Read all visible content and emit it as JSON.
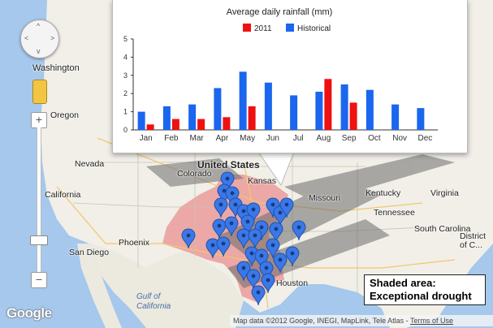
{
  "map": {
    "labels": {
      "washington": "Washington",
      "oregon": "Oregon",
      "nevada": "Nevada",
      "california": "California",
      "colorado": "Colorado",
      "united_states": "United States",
      "kansas": "Kansas",
      "missouri": "Missouri",
      "kentucky": "Kentucky",
      "virginia": "Virginia",
      "tennessee": "Tennessee",
      "south_carolina": "South Carolina",
      "phoenix": "Phoenix",
      "san_diego": "San Diego",
      "district_of_columbia": "District of C...",
      "gulf_of_california": "Gulf of California",
      "houston": "Houston"
    },
    "colors": {
      "drought_shade": "#e88a8a",
      "marker": "#3b78e7",
      "land": "#f1efe8",
      "water": "#a5c8ec"
    }
  },
  "controls": {
    "zoom_in": "+",
    "zoom_out": "−",
    "pan_up": "^",
    "pan_down": "v",
    "pan_left": "<",
    "pan_right": ">"
  },
  "legend_box": {
    "line1": "Shaded area:",
    "line2": "Exceptional drought"
  },
  "footer": {
    "logo": "Google",
    "attribution": "Map data ©2012 Google, INEGI, MapLink, Tele Atlas -",
    "terms": "Terms of Use"
  },
  "chart_data": {
    "type": "bar",
    "title": "Average daily rainfall (mm)",
    "categories": [
      "Jan",
      "Feb",
      "Mar",
      "Apr",
      "May",
      "Jun",
      "Jul",
      "Aug",
      "Sep",
      "Oct",
      "Nov",
      "Dec"
    ],
    "series": [
      {
        "name": "2011",
        "color": "#ee1111",
        "values": [
          0.3,
          0.6,
          0.6,
          0.7,
          1.3,
          null,
          null,
          2.8,
          1.5,
          null,
          null,
          null
        ]
      },
      {
        "name": "Historical",
        "color": "#1a66ee",
        "values": [
          1.0,
          1.3,
          1.4,
          2.3,
          3.2,
          2.6,
          1.9,
          2.1,
          2.5,
          2.2,
          1.4,
          1.2
        ]
      }
    ],
    "ylim": [
      0,
      5
    ],
    "yticks": [
      0,
      1,
      2,
      3,
      4,
      5
    ],
    "legend_position": "top-center"
  }
}
